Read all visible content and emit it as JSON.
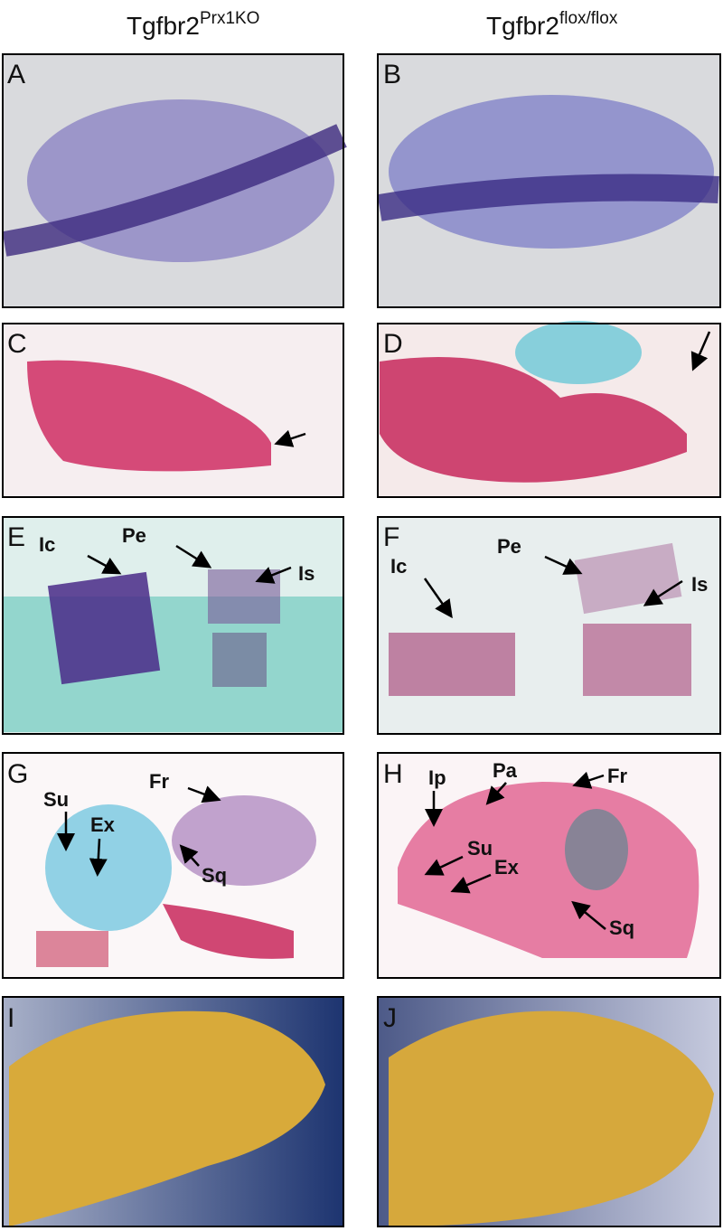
{
  "header": {
    "left": {
      "base": "Tgfbr2",
      "superscript": "Prx1KO"
    },
    "right": {
      "base": "Tgfbr2",
      "superscript": "flox/flox"
    }
  },
  "panels": [
    {
      "letter": "A"
    },
    {
      "letter": "B"
    },
    {
      "letter": "C"
    },
    {
      "letter": "D"
    },
    {
      "letter": "E",
      "annotations": [
        "Ic",
        "Pe",
        "Is"
      ]
    },
    {
      "letter": "F",
      "annotations": [
        "Pe",
        "Ic",
        "Is"
      ]
    },
    {
      "letter": "G",
      "annotations": [
        "Fr",
        "Su",
        "Ex",
        "Sq"
      ]
    },
    {
      "letter": "H",
      "annotations": [
        "Ip",
        "Pa",
        "Fr",
        "Su",
        "Ex",
        "Sq"
      ]
    },
    {
      "letter": "I"
    },
    {
      "letter": "J"
    }
  ]
}
